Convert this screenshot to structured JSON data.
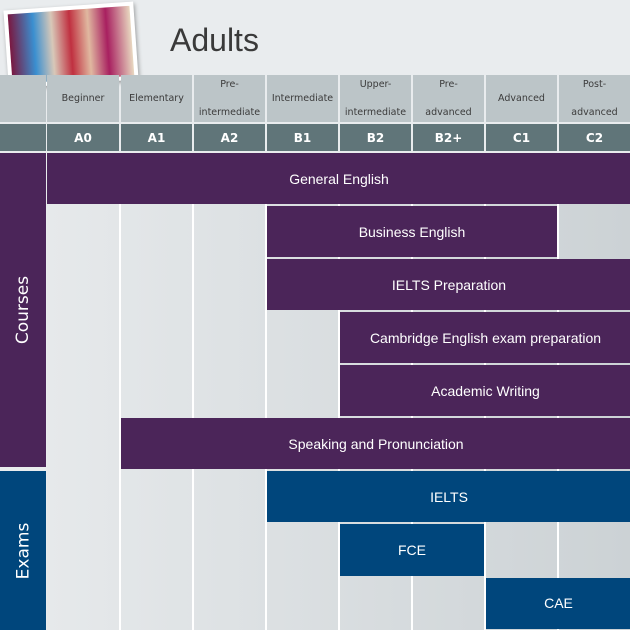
{
  "title": "Adults",
  "levels": [
    {
      "name": "Beginner",
      "code": "A0"
    },
    {
      "name": "Elementary",
      "code": "A1"
    },
    {
      "name": "Pre-intermediate",
      "code": "A2"
    },
    {
      "name": "Intermediate",
      "code": "B1"
    },
    {
      "name": "Upper-intermediate",
      "code": "B2"
    },
    {
      "name": "Pre-advanced",
      "code": "B2+"
    },
    {
      "name": "Advanced",
      "code": "C1"
    },
    {
      "name": "Post-advanced",
      "code": "C2"
    }
  ],
  "courses": {
    "label": "Courses",
    "items": [
      {
        "name": "General English",
        "from": "A0",
        "to": "C2"
      },
      {
        "name": "Business English",
        "from": "B1",
        "to": "C1"
      },
      {
        "name": "IELTS Preparation",
        "from": "B1",
        "to": "C2"
      },
      {
        "name": "Cambridge English exam preparation",
        "from": "B2",
        "to": "C2"
      },
      {
        "name": "Academic Writing",
        "from": "B2",
        "to": "C2"
      },
      {
        "name": "Speaking and Pronunciation",
        "from": "A1",
        "to": "C2"
      }
    ]
  },
  "exams": {
    "label": "Exams",
    "items": [
      {
        "name": "IELTS",
        "from": "B1",
        "to": "C2"
      },
      {
        "name": "FCE",
        "from": "B2",
        "to": "B2+"
      },
      {
        "name": "CAE",
        "from": "C1",
        "to": "C2"
      }
    ]
  },
  "colors": {
    "courses": "#4b2559",
    "exams": "#00467c",
    "level_code_row": "#607579"
  }
}
